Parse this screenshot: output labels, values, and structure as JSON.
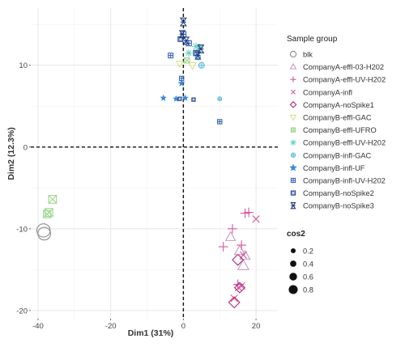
{
  "chart_data": {
    "type": "scatter",
    "xlabel": "Dim1 (31%)",
    "ylabel": "Dim2 (12.3%)",
    "xlim": [
      -42,
      26
    ],
    "ylim": [
      -21,
      17
    ],
    "xticks": [
      -40,
      -20,
      0,
      20
    ],
    "yticks": [
      -20,
      -10,
      0,
      10
    ],
    "grid": true,
    "reference_lines": [
      {
        "axis": "x",
        "value": 0
      },
      {
        "axis": "y",
        "value": 0
      }
    ],
    "legend_group_title": "Sample group",
    "legend_size_title": "cos2",
    "size_legend": [
      0.2,
      0.4,
      0.6,
      0.8
    ],
    "series": [
      {
        "name": "blk",
        "marker": "circle",
        "color": "#8c8c8c",
        "points": [
          [
            -38.5,
            -10.2,
            0.8
          ],
          [
            -38.3,
            -10.6,
            0.75
          ]
        ]
      },
      {
        "name": "CompanyA-effl-03-H202",
        "marker": "triangle",
        "color": "#c79bc2",
        "points": [
          [
            13,
            -11,
            0.55
          ],
          [
            15.5,
            -12.7,
            0.6
          ],
          [
            17,
            -13.3,
            0.55
          ],
          [
            16.5,
            -14.5,
            0.65
          ]
        ]
      },
      {
        "name": "CompanyA-effl-UV-H202",
        "marker": "plus",
        "color": "#d6569c",
        "points": [
          [
            13.5,
            -10,
            0.5
          ],
          [
            17,
            -8.1,
            0.5
          ],
          [
            18,
            -8,
            0.5
          ],
          [
            16,
            -12,
            0.5
          ],
          [
            15,
            -16.8,
            0.5
          ],
          [
            11,
            -12.2,
            0.5
          ]
        ]
      },
      {
        "name": "CompanyA-infl",
        "marker": "x",
        "color": "#d6569c",
        "points": [
          [
            20,
            -8.8,
            0.5
          ],
          [
            16.5,
            -13.2,
            0.5
          ],
          [
            16,
            -17,
            0.5
          ],
          [
            15.2,
            -17.2,
            0.5
          ],
          [
            14,
            -18.5,
            0.5
          ]
        ]
      },
      {
        "name": "CompanyA-noSpike1",
        "marker": "diamond",
        "color": "#b5267f",
        "points": [
          [
            15,
            -13.8,
            0.6
          ],
          [
            15.5,
            -17.2,
            0.55
          ],
          [
            14,
            -19,
            0.6
          ]
        ]
      },
      {
        "name": "CompanyB-effl-GAC",
        "marker": "triangle-down",
        "color": "#d8e28c",
        "points": [
          [
            2.5,
            10,
            0.35
          ],
          [
            -1,
            10.2,
            0.3
          ]
        ]
      },
      {
        "name": "CompanyB-effl-UFRO",
        "marker": "square-x",
        "color": "#9ed68e",
        "points": [
          [
            -36,
            -6.4,
            0.6
          ],
          [
            -37,
            -8,
            0.6
          ],
          [
            -37.5,
            -8.2,
            0.55
          ],
          [
            1,
            10.6,
            0.3
          ]
        ]
      },
      {
        "name": "CompanyB-effl-UV-H202",
        "marker": "asterisk",
        "color": "#6cd1c3",
        "points": [
          [
            3.5,
            12.3,
            0.35
          ],
          [
            4.5,
            12.2,
            0.3
          ],
          [
            1.5,
            11.5,
            0.3
          ]
        ]
      },
      {
        "name": "CompanyB-infl-GAC",
        "marker": "circle-plus",
        "color": "#58b9e0",
        "points": [
          [
            5,
            10,
            0.35
          ],
          [
            10,
            5.9,
            0.15
          ],
          [
            4,
            11,
            0.3
          ]
        ]
      },
      {
        "name": "CompanyB-infl-UF",
        "marker": "star",
        "color": "#3d8ad4",
        "points": [
          [
            -5.5,
            6,
            0.1
          ],
          [
            -2,
            5.9,
            0.1
          ],
          [
            -0.5,
            7.8,
            0.15
          ],
          [
            0.5,
            6,
            0.1
          ]
        ]
      },
      {
        "name": "CompanyB-infl-UV-H202",
        "marker": "square-cross",
        "color": "#3b67b5",
        "points": [
          [
            -3.5,
            11.2,
            0.25
          ],
          [
            10,
            3.1,
            0.2
          ],
          [
            0,
            13.8,
            0.3
          ],
          [
            1.5,
            12.7,
            0.3
          ],
          [
            -0.5,
            8.4,
            0.2
          ]
        ]
      },
      {
        "name": "CompanyB-noSpike2",
        "marker": "square-dot",
        "color": "#2c4e9c",
        "points": [
          [
            -1,
            5.9,
            0.1
          ],
          [
            2.8,
            5.8,
            0.1
          ],
          [
            3.5,
            11.5,
            0.3
          ],
          [
            -0.8,
            13.2,
            0.25
          ]
        ]
      },
      {
        "name": "CompanyB-noSpike3",
        "marker": "hourglass",
        "color": "#1f3a7d",
        "points": [
          [
            0,
            15.3,
            0.35
          ],
          [
            -0.3,
            13.8,
            0.3
          ],
          [
            0.8,
            13,
            0.3
          ],
          [
            4.8,
            12,
            0.35
          ],
          [
            4,
            11.2,
            0.3
          ]
        ]
      }
    ]
  }
}
